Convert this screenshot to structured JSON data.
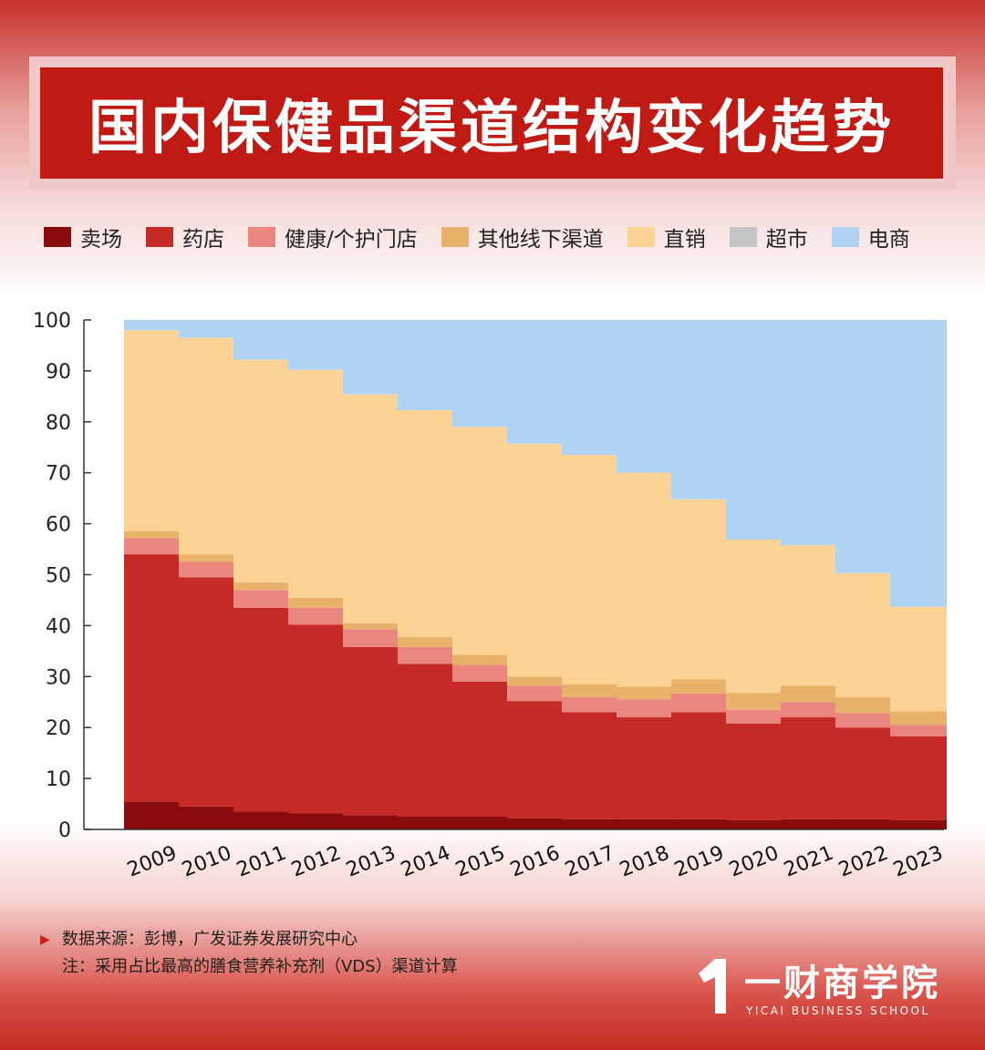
{
  "header": {
    "title": "国内保健品渠道结构变化趋势"
  },
  "legend": [
    {
      "label": "卖场",
      "color": "#8a0b0b"
    },
    {
      "label": "药店",
      "color": "#c62a27"
    },
    {
      "label": "健康/个护门店",
      "color": "#eb8580"
    },
    {
      "label": "其他线下渠道",
      "color": "#e8b26a"
    },
    {
      "label": "直销",
      "color": "#fcd394"
    },
    {
      "label": "超市",
      "color": "#c4c4c4"
    },
    {
      "label": "电商",
      "color": "#b1d3f3"
    }
  ],
  "chart_data": {
    "type": "bar",
    "stacked": true,
    "categories": [
      "2009",
      "2010",
      "2011",
      "2012",
      "2013",
      "2014",
      "2015",
      "2016",
      "2017",
      "2018",
      "2019",
      "2020",
      "2021",
      "2022",
      "2023"
    ],
    "ylim": [
      0,
      100
    ],
    "yticks": [
      0,
      10,
      20,
      30,
      40,
      50,
      60,
      70,
      80,
      90,
      100
    ],
    "series": [
      {
        "name": "卖场",
        "color": "#8a0b0b",
        "values": [
          5.5,
          4.5,
          3.5,
          3.2,
          2.8,
          2.5,
          2.5,
          2.2,
          2.0,
          2.0,
          2.0,
          1.8,
          2.0,
          2.0,
          1.8
        ]
      },
      {
        "name": "药店",
        "color": "#c62a27",
        "values": [
          48.5,
          45.0,
          40.0,
          37.0,
          33.0,
          30.0,
          26.5,
          23.0,
          21.0,
          20.0,
          21.0,
          19.0,
          20.0,
          18.0,
          16.5
        ]
      },
      {
        "name": "健康/个护门店",
        "color": "#eb8580",
        "values": [
          3.2,
          3.0,
          3.5,
          3.3,
          3.5,
          3.3,
          3.3,
          3.0,
          3.0,
          3.5,
          3.7,
          2.7,
          3.0,
          2.8,
          2.2
        ]
      },
      {
        "name": "其他线下渠道",
        "color": "#e8b26a",
        "values": [
          1.3,
          1.5,
          1.5,
          2.0,
          1.2,
          2.0,
          2.0,
          1.8,
          2.5,
          2.5,
          2.8,
          3.3,
          3.2,
          3.2,
          2.7
        ]
      },
      {
        "name": "直销",
        "color": "#fcd394",
        "values": [
          39.5,
          42.5,
          43.7,
          44.7,
          44.9,
          44.5,
          44.7,
          45.7,
          45.0,
          42.0,
          35.3,
          30.1,
          27.6,
          24.3,
          20.5
        ]
      },
      {
        "name": "超市",
        "color": "#c4c4c4",
        "values": [
          0,
          0,
          0,
          0,
          0,
          0,
          0,
          0,
          0,
          0,
          0,
          0,
          0,
          0,
          0
        ]
      },
      {
        "name": "电商",
        "color": "#b1d3f3",
        "values": [
          2.0,
          3.5,
          7.8,
          9.8,
          14.6,
          17.7,
          21.0,
          24.3,
          26.5,
          30.0,
          35.2,
          43.1,
          44.2,
          49.7,
          56.3
        ]
      }
    ]
  },
  "notes": {
    "source": "数据来源：彭博，广发证券发展研究中心",
    "note": "注：采用占比最高的膳食营养补充剂（VDS）渠道计算"
  },
  "logo": {
    "name": "一财商学院",
    "english": "YICAI BUSINESS SCHOOL"
  }
}
